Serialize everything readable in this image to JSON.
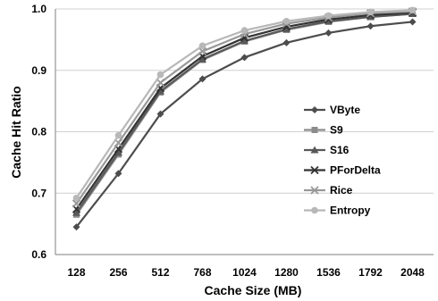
{
  "chart_data": {
    "type": "line",
    "xlabel": "Cache Size (MB)",
    "ylabel": "Cache Hit Ratio",
    "ylim": [
      0.6,
      1.0
    ],
    "yticks": [
      "0.6",
      "0.7",
      "0.8",
      "0.9",
      "1.0"
    ],
    "categories": [
      "128",
      "256",
      "512",
      "768",
      "1024",
      "1280",
      "1536",
      "1792",
      "2048"
    ],
    "grid": "horizontal",
    "legend_position": "right",
    "series": [
      {
        "name": "VByte",
        "color": "#4d4d4d",
        "marker": "diamond",
        "values": [
          0.645,
          0.732,
          0.829,
          0.886,
          0.921,
          0.945,
          0.961,
          0.972,
          0.979
        ]
      },
      {
        "name": "S9",
        "color": "#8c8c8c",
        "marker": "square",
        "values": [
          0.665,
          0.763,
          0.864,
          0.917,
          0.947,
          0.966,
          0.979,
          0.987,
          0.992
        ]
      },
      {
        "name": "S16",
        "color": "#595959",
        "marker": "triangle",
        "values": [
          0.668,
          0.766,
          0.866,
          0.918,
          0.948,
          0.967,
          0.98,
          0.987,
          0.992
        ]
      },
      {
        "name": "PForDelta",
        "color": "#333333",
        "marker": "x",
        "values": [
          0.674,
          0.772,
          0.871,
          0.923,
          0.953,
          0.971,
          0.983,
          0.99,
          0.994
        ]
      },
      {
        "name": "Rice",
        "color": "#999999",
        "marker": "x",
        "values": [
          0.683,
          0.782,
          0.88,
          0.931,
          0.959,
          0.976,
          0.986,
          0.993,
          0.996
        ]
      },
      {
        "name": "Entropy",
        "color": "#b8b8b8",
        "marker": "circle",
        "values": [
          0.692,
          0.794,
          0.893,
          0.94,
          0.965,
          0.98,
          0.989,
          0.995,
          0.998
        ]
      }
    ]
  }
}
